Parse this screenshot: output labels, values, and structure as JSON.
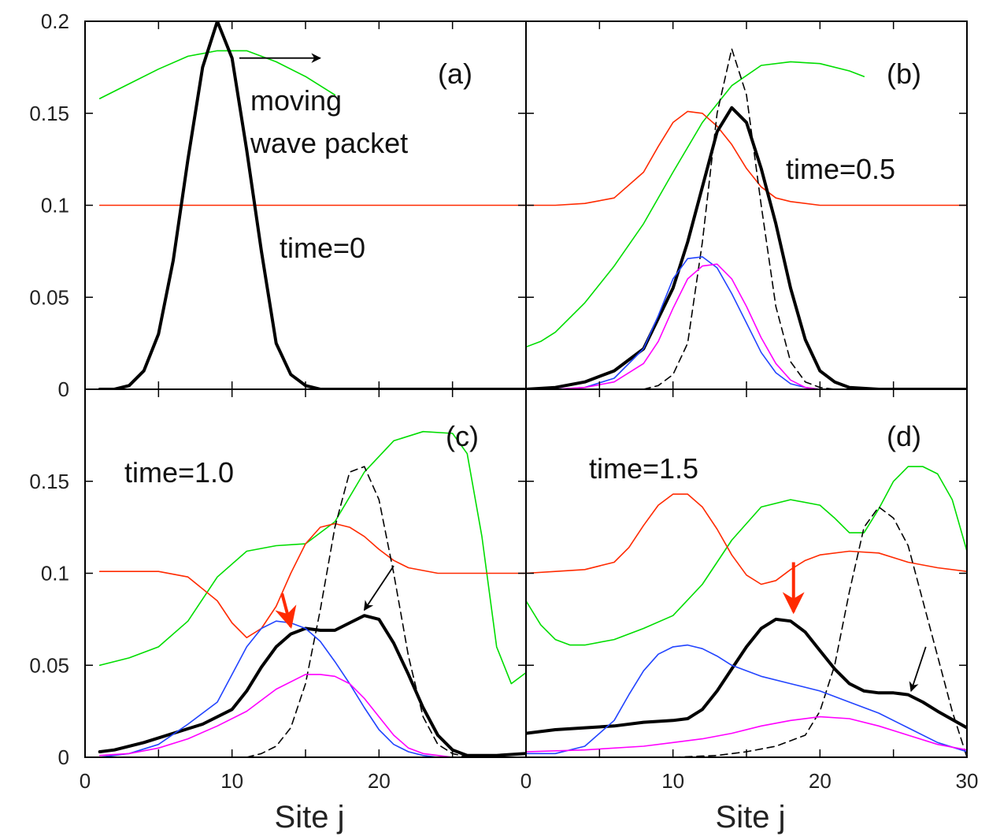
{
  "chart_data": [
    {
      "type": "line",
      "panel_label": "(a)",
      "annotations": [
        "moving",
        "wave packet",
        "time=0"
      ],
      "xlim": [
        0,
        30
      ],
      "ylim": [
        0,
        0.2
      ],
      "series": [
        {
          "color": "#00dd00",
          "style": "solid",
          "x": [
            1,
            3,
            5,
            7,
            9,
            11,
            13,
            15,
            17
          ],
          "values": [
            0.158,
            0.166,
            0.174,
            0.181,
            0.184,
            0.184,
            0.178,
            0.17,
            0.16
          ]
        },
        {
          "color": "#ff2a00",
          "style": "solid",
          "x": [
            1,
            30
          ],
          "values": [
            0.1,
            0.1
          ]
        },
        {
          "color": "#000000",
          "style": "thick",
          "x": [
            1,
            2,
            3,
            4,
            5,
            6,
            7,
            8,
            9,
            10,
            11,
            12,
            13,
            14,
            15,
            16,
            17,
            30
          ],
          "values": [
            0,
            0,
            0.002,
            0.01,
            0.03,
            0.07,
            0.125,
            0.175,
            0.2,
            0.18,
            0.13,
            0.075,
            0.025,
            0.008,
            0.002,
            0,
            0,
            0
          ]
        }
      ],
      "arrows": [
        {
          "x1": 10.5,
          "y1": 0.18,
          "x2": 16.0,
          "y2": 0.18,
          "color": "#000000"
        }
      ]
    },
    {
      "type": "line",
      "panel_label": "(b)",
      "annotations": [
        "time=0.5"
      ],
      "xlim": [
        0,
        30
      ],
      "ylim": [
        0,
        0.2
      ],
      "series": [
        {
          "color": "#00dd00",
          "style": "solid",
          "x": [
            0,
            1,
            2,
            4,
            6,
            8,
            10,
            12,
            14,
            16,
            18,
            20,
            22,
            23
          ],
          "values": [
            0.023,
            0.026,
            0.031,
            0.047,
            0.067,
            0.09,
            0.118,
            0.145,
            0.165,
            0.176,
            0.178,
            0.177,
            0.173,
            0.17
          ]
        },
        {
          "color": "#ff2a00",
          "style": "solid",
          "x": [
            0,
            2,
            4,
            6,
            8,
            9,
            10,
            11,
            12,
            13,
            14,
            15,
            16,
            17,
            18,
            20,
            22,
            24,
            26,
            28,
            30
          ],
          "values": [
            0.1,
            0.1,
            0.101,
            0.104,
            0.118,
            0.132,
            0.145,
            0.151,
            0.15,
            0.143,
            0.133,
            0.12,
            0.11,
            0.104,
            0.102,
            0.1,
            0.1,
            0.1,
            0.1,
            0.1,
            0.1
          ]
        },
        {
          "color": "#000000",
          "style": "thick",
          "x": [
            0,
            2,
            4,
            6,
            8,
            10,
            11,
            12,
            13,
            14,
            15,
            16,
            17,
            18,
            19,
            20,
            21,
            22,
            24,
            26,
            30
          ],
          "values": [
            0.0,
            0.001,
            0.004,
            0.01,
            0.022,
            0.055,
            0.08,
            0.11,
            0.14,
            0.153,
            0.145,
            0.12,
            0.09,
            0.055,
            0.027,
            0.01,
            0.004,
            0.001,
            0,
            0,
            0
          ]
        },
        {
          "color": "#000000",
          "style": "dashed",
          "x": [
            8,
            9,
            10,
            11,
            12,
            13,
            14,
            15,
            16,
            17,
            18,
            19,
            20,
            21,
            22
          ],
          "values": [
            0,
            0.002,
            0.008,
            0.025,
            0.08,
            0.15,
            0.185,
            0.16,
            0.1,
            0.045,
            0.015,
            0.004,
            0.001,
            0,
            0
          ]
        },
        {
          "color": "#2244ff",
          "style": "solid",
          "x": [
            2,
            4,
            6,
            8,
            9,
            10,
            11,
            12,
            13,
            14,
            15,
            16,
            17,
            18,
            19,
            20
          ],
          "values": [
            0,
            0.001,
            0.006,
            0.022,
            0.04,
            0.06,
            0.071,
            0.072,
            0.066,
            0.052,
            0.036,
            0.02,
            0.009,
            0.003,
            0.001,
            0
          ]
        },
        {
          "color": "#ff00ff",
          "style": "solid",
          "x": [
            2,
            4,
            6,
            8,
            9,
            10,
            11,
            12,
            13,
            14,
            15,
            16,
            17,
            18,
            19,
            20
          ],
          "values": [
            0,
            0.001,
            0.004,
            0.014,
            0.026,
            0.044,
            0.06,
            0.067,
            0.068,
            0.06,
            0.045,
            0.028,
            0.014,
            0.005,
            0.001,
            0
          ]
        }
      ],
      "arrows": []
    },
    {
      "type": "line",
      "panel_label": "(c)",
      "annotations": [
        "time=1.0"
      ],
      "xlim": [
        0,
        30
      ],
      "ylim": [
        0,
        0.2
      ],
      "series": [
        {
          "color": "#00dd00",
          "style": "solid",
          "x": [
            1,
            3,
            5,
            7,
            9,
            11,
            13,
            15,
            17,
            19,
            21,
            23,
            25,
            26,
            27,
            28,
            29,
            30
          ],
          "values": [
            0.05,
            0.054,
            0.06,
            0.074,
            0.098,
            0.112,
            0.115,
            0.116,
            0.128,
            0.155,
            0.172,
            0.177,
            0.176,
            0.165,
            0.12,
            0.06,
            0.04,
            0.046
          ]
        },
        {
          "color": "#ff2a00",
          "style": "solid",
          "x": [
            1,
            3,
            5,
            7,
            9,
            10,
            11,
            12,
            13,
            14,
            15,
            16,
            17,
            18,
            19,
            20,
            21,
            22,
            24,
            26,
            28,
            30
          ],
          "values": [
            0.101,
            0.101,
            0.101,
            0.098,
            0.085,
            0.073,
            0.065,
            0.07,
            0.082,
            0.1,
            0.116,
            0.125,
            0.127,
            0.125,
            0.12,
            0.113,
            0.107,
            0.103,
            0.1,
            0.1,
            0.1,
            0.1
          ]
        },
        {
          "color": "#000000",
          "style": "thick",
          "x": [
            1,
            2,
            4,
            6,
            8,
            10,
            11,
            12,
            13,
            14,
            15,
            16,
            17,
            18,
            19,
            20,
            21,
            22,
            23,
            24,
            25,
            26,
            27,
            28,
            30
          ],
          "values": [
            0.003,
            0.004,
            0.008,
            0.013,
            0.018,
            0.026,
            0.036,
            0.049,
            0.06,
            0.067,
            0.07,
            0.069,
            0.069,
            0.073,
            0.077,
            0.075,
            0.062,
            0.045,
            0.027,
            0.012,
            0.004,
            0.001,
            0.001,
            0.001,
            0.002
          ]
        },
        {
          "color": "#000000",
          "style": "dashed",
          "x": [
            11,
            12,
            13,
            14,
            15,
            16,
            17,
            18,
            19,
            20,
            21,
            22,
            23,
            24,
            25,
            26
          ],
          "values": [
            0,
            0.002,
            0.006,
            0.016,
            0.04,
            0.08,
            0.125,
            0.155,
            0.158,
            0.14,
            0.1,
            0.055,
            0.022,
            0.007,
            0.002,
            0
          ]
        },
        {
          "color": "#2244ff",
          "style": "solid",
          "x": [
            1,
            3,
            5,
            7,
            9,
            10,
            11,
            12,
            13,
            14,
            15,
            16,
            17,
            18,
            19,
            20,
            21,
            22,
            23,
            24,
            25
          ],
          "values": [
            0,
            0.002,
            0.007,
            0.018,
            0.03,
            0.045,
            0.06,
            0.07,
            0.074,
            0.073,
            0.07,
            0.063,
            0.052,
            0.04,
            0.027,
            0.015,
            0.007,
            0.003,
            0.001,
            0,
            0
          ]
        },
        {
          "color": "#ff00ff",
          "style": "solid",
          "x": [
            1,
            3,
            5,
            7,
            9,
            11,
            13,
            15,
            16,
            17,
            18,
            19,
            20,
            21,
            22,
            23,
            24,
            25
          ],
          "values": [
            0.001,
            0.002,
            0.005,
            0.01,
            0.017,
            0.025,
            0.037,
            0.045,
            0.045,
            0.044,
            0.04,
            0.032,
            0.022,
            0.012,
            0.005,
            0.002,
            0.001,
            0
          ]
        }
      ],
      "arrows": [
        {
          "x1": 13.4,
          "y1": 0.089,
          "x2": 14.0,
          "y2": 0.071,
          "color": "#ff2a00"
        },
        {
          "x1": 21.0,
          "y1": 0.104,
          "x2": 19.0,
          "y2": 0.08,
          "color": "#000000"
        }
      ]
    },
    {
      "type": "line",
      "panel_label": "(d)",
      "annotations": [
        "time=1.5"
      ],
      "xlim": [
        0,
        30
      ],
      "ylim": [
        0,
        0.2
      ],
      "series": [
        {
          "color": "#00dd00",
          "style": "solid",
          "x": [
            0,
            1,
            2,
            3,
            4,
            6,
            8,
            10,
            12,
            14,
            16,
            18,
            20,
            21,
            22,
            23,
            24,
            25,
            26,
            27,
            28,
            29,
            30
          ],
          "values": [
            0.085,
            0.072,
            0.064,
            0.061,
            0.061,
            0.064,
            0.07,
            0.077,
            0.094,
            0.118,
            0.136,
            0.14,
            0.137,
            0.13,
            0.122,
            0.122,
            0.135,
            0.15,
            0.158,
            0.158,
            0.154,
            0.14,
            0.112
          ]
        },
        {
          "color": "#ff2a00",
          "style": "solid",
          "x": [
            0,
            2,
            4,
            6,
            7,
            8,
            9,
            10,
            11,
            12,
            13,
            14,
            15,
            16,
            17,
            18,
            19,
            20,
            22,
            24,
            26,
            28,
            30
          ],
          "values": [
            0.1,
            0.101,
            0.102,
            0.106,
            0.114,
            0.126,
            0.137,
            0.143,
            0.143,
            0.136,
            0.124,
            0.11,
            0.099,
            0.094,
            0.096,
            0.102,
            0.107,
            0.11,
            0.112,
            0.111,
            0.106,
            0.103,
            0.101
          ]
        },
        {
          "color": "#000000",
          "style": "thick",
          "x": [
            0,
            2,
            4,
            6,
            8,
            10,
            11,
            12,
            13,
            14,
            15,
            16,
            17,
            18,
            19,
            20,
            21,
            22,
            23,
            24,
            25,
            26,
            27,
            28,
            30
          ],
          "values": [
            0.013,
            0.015,
            0.016,
            0.017,
            0.019,
            0.02,
            0.021,
            0.026,
            0.036,
            0.048,
            0.06,
            0.07,
            0.075,
            0.074,
            0.068,
            0.058,
            0.048,
            0.04,
            0.036,
            0.035,
            0.035,
            0.034,
            0.03,
            0.025,
            0.016
          ]
        },
        {
          "color": "#000000",
          "style": "dashed",
          "x": [
            6,
            10,
            13,
            15,
            17,
            19,
            20,
            21,
            22,
            23,
            24,
            25,
            26,
            27,
            28,
            29,
            30
          ],
          "values": [
            0,
            0,
            0.001,
            0.003,
            0.006,
            0.012,
            0.025,
            0.05,
            0.09,
            0.125,
            0.136,
            0.13,
            0.115,
            0.085,
            0.055,
            0.025,
            0.0
          ]
        },
        {
          "color": "#2244ff",
          "style": "solid",
          "x": [
            0,
            2,
            4,
            6,
            7,
            8,
            9,
            10,
            11,
            12,
            13,
            14,
            16,
            18,
            20,
            22,
            24,
            26,
            28,
            30
          ],
          "values": [
            0.002,
            0.002,
            0.006,
            0.02,
            0.034,
            0.047,
            0.056,
            0.06,
            0.061,
            0.059,
            0.055,
            0.05,
            0.044,
            0.04,
            0.036,
            0.03,
            0.024,
            0.016,
            0.008,
            0.003
          ]
        },
        {
          "color": "#ff00ff",
          "style": "solid",
          "x": [
            0,
            4,
            8,
            10,
            12,
            14,
            16,
            18,
            20,
            22,
            24,
            26,
            28,
            30
          ],
          "values": [
            0.003,
            0.004,
            0.006,
            0.008,
            0.01,
            0.013,
            0.017,
            0.02,
            0.022,
            0.021,
            0.017,
            0.012,
            0.007,
            0.004
          ]
        }
      ],
      "arrows": [
        {
          "x1": 18.2,
          "y1": 0.106,
          "x2": 18.2,
          "y2": 0.079,
          "color": "#ff2a00"
        },
        {
          "x1": 27.2,
          "y1": 0.06,
          "x2": 26.2,
          "y2": 0.036,
          "color": "#000000"
        }
      ]
    }
  ],
  "axes": {
    "y_ticks_top": [
      "0.2",
      "0.15",
      "0.1",
      "0.05",
      "0"
    ],
    "y_ticks_bottom": [
      "0.15",
      "0.1",
      "0.05",
      "0"
    ],
    "x_ticks_left": [
      "0",
      "10",
      "20",
      "0"
    ],
    "x_ticks_right": [
      "10",
      "20",
      "30"
    ],
    "xlabel": "Site j"
  }
}
